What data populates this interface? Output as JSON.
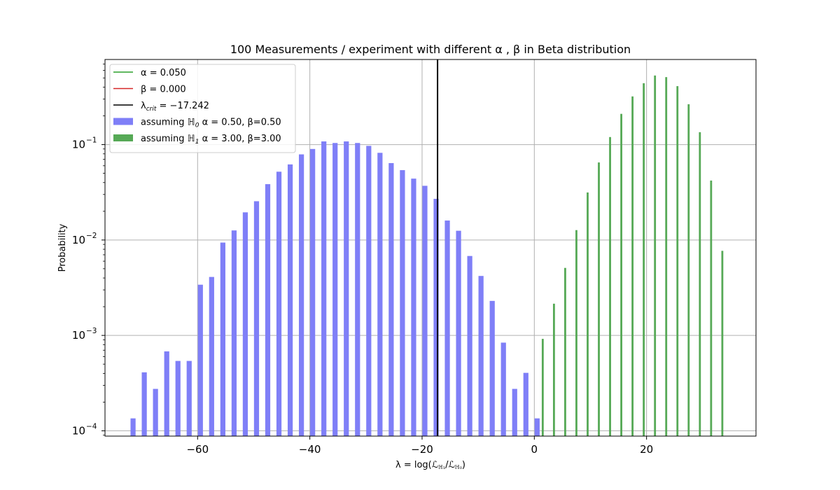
{
  "chart_data": {
    "type": "bar",
    "title": "100 Measurements / experiment with different α , β in Beta distribution",
    "xlabel": "λ = log(ℒ",
    "xlabel_parts": [
      "λ = log(ℒ",
      "ℍ₁",
      "/ℒ",
      "ℍ₀",
      ")"
    ],
    "ylabel": "Probability",
    "yscale": "log",
    "xlim": [
      -76.5,
      39.5
    ],
    "ylim": [
      8.8e-05,
      0.78
    ],
    "xticks": [
      -60,
      -40,
      -20,
      0,
      20
    ],
    "xtick_labels": [
      "−60",
      "−40",
      "−20",
      "0",
      "20"
    ],
    "yticks": [
      0.0001,
      0.001,
      0.01,
      0.1
    ],
    "ytick_labels": [
      {
        "base": "10",
        "exp": "−4"
      },
      {
        "base": "10",
        "exp": "−3"
      },
      {
        "base": "10",
        "exp": "−2"
      },
      {
        "base": "10",
        "exp": "−1"
      }
    ],
    "grid": true,
    "legend_placement": "upper-left",
    "critical_value": -17.242,
    "colors": {
      "h0": "#7f7ff7",
      "h1": "#56a956",
      "alpha_line": "#2ca02c",
      "beta_line": "#d62728",
      "crit_line": "#000000"
    },
    "legend": [
      {
        "kind": "line",
        "color": "#2ca02c",
        "parts": [
          {
            "t": "α"
          },
          {
            "t": " = 0.050"
          }
        ]
      },
      {
        "kind": "line",
        "color": "#d62728",
        "parts": [
          {
            "t": "β"
          },
          {
            "t": " = 0.000"
          }
        ]
      },
      {
        "kind": "line",
        "color": "#000000",
        "parts": [
          {
            "t": "λ"
          },
          {
            "t": "crit",
            "sub": true
          },
          {
            "t": " = −17.242"
          }
        ]
      },
      {
        "kind": "patch",
        "color": "#7f7ff7",
        "parts": [
          {
            "t": "assuming ℍ"
          },
          {
            "t": "0",
            "sub": true
          },
          {
            "t": " α = 0.50, β=0.50"
          }
        ]
      },
      {
        "kind": "patch",
        "color": "#56a956",
        "parts": [
          {
            "t": "assuming ℍ"
          },
          {
            "t": "1",
            "sub": true
          },
          {
            "t": " α = 3.00, β=3.00"
          }
        ]
      }
    ],
    "series": [
      {
        "name": "assuming ℍ0 α = 0.50, β=0.50",
        "x": [
          -71.5,
          -69.5,
          -67.5,
          -65.5,
          -63.5,
          -61.5,
          -59.5,
          -57.5,
          -55.5,
          -53.5,
          -51.5,
          -49.5,
          -47.5,
          -45.5,
          -43.5,
          -41.5,
          -39.5,
          -37.5,
          -35.5,
          -33.5,
          -31.5,
          -29.5,
          -27.5,
          -25.5,
          -23.5,
          -21.5,
          -19.5,
          -17.5,
          -15.5,
          -13.5,
          -11.5,
          -9.5,
          -7.5,
          -5.5,
          -3.5,
          -1.5,
          0.5
        ],
        "values": [
          0.000135,
          0.00041,
          0.000275,
          0.00068,
          0.00054,
          0.00054,
          0.0034,
          0.0041,
          0.0094,
          0.0126,
          0.0195,
          0.0255,
          0.0385,
          0.052,
          0.062,
          0.079,
          0.09,
          0.108,
          0.104,
          0.108,
          0.104,
          0.097,
          0.082,
          0.064,
          0.054,
          0.044,
          0.037,
          0.027,
          0.016,
          0.0125,
          0.0068,
          0.0042,
          0.0023,
          0.00084,
          0.000275,
          0.000405,
          0.000135
        ],
        "width": 0.9
      },
      {
        "name": "assuming ℍ1 α = 3.00, β=3.00",
        "x": [
          1.5,
          3.5,
          5.5,
          7.5,
          9.5,
          11.5,
          13.5,
          15.5,
          17.5,
          19.5,
          21.5,
          23.5,
          25.5,
          27.5,
          29.5,
          31.5,
          33.5
        ],
        "values": [
          0.00092,
          0.00215,
          0.0051,
          0.0127,
          0.0315,
          0.065,
          0.12,
          0.21,
          0.32,
          0.44,
          0.53,
          0.51,
          0.41,
          0.265,
          0.135,
          0.042,
          0.0077
        ],
        "width": 0.35
      }
    ]
  }
}
